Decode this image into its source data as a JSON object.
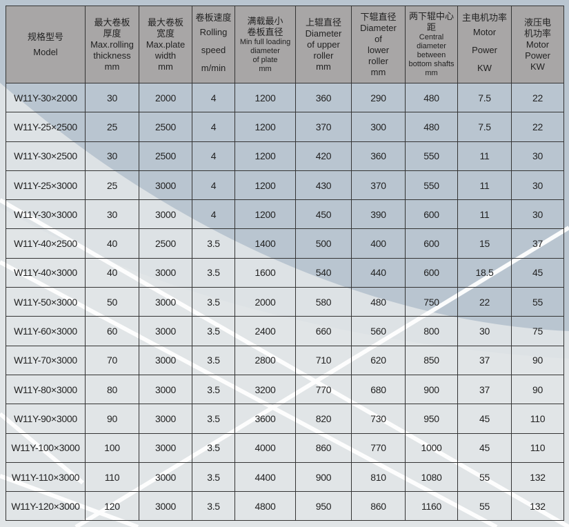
{
  "table": {
    "headers": [
      {
        "lines": [
          "规格型号",
          "Model"
        ]
      },
      {
        "lines": [
          "最大卷板",
          "厚度",
          "Max.rolling",
          "thickness",
          "mm"
        ]
      },
      {
        "lines": [
          "最大卷板",
          "宽度",
          "Max.plate",
          "width",
          "mm"
        ]
      },
      {
        "lines": [
          "卷板速度",
          "Rolling",
          "speed",
          "m/min"
        ]
      },
      {
        "lines": [
          "满载最小",
          "卷板直径",
          "Min full loading",
          "diameter",
          "of plate",
          "mm"
        ]
      },
      {
        "lines": [
          "上辊直径",
          "Diameter",
          "of upper",
          "roller",
          "mm"
        ]
      },
      {
        "lines": [
          "下辊直径",
          "Diameter",
          "of",
          "lower",
          "roller",
          "mm"
        ]
      },
      {
        "lines": [
          "两下辊中心距",
          "Central",
          "diameter",
          "between",
          "bottom shafts",
          "mm"
        ]
      },
      {
        "lines": [
          "主电机功率",
          "Motor",
          "Power",
          "KW"
        ]
      },
      {
        "lines": [
          "液压电",
          "机功率",
          "Motor",
          "Power",
          "KW"
        ]
      }
    ],
    "rows": [
      [
        "W11Y-30×2000",
        "30",
        "2000",
        "4",
        "1200",
        "360",
        "290",
        "480",
        "7.5",
        "22"
      ],
      [
        "W11Y-25×2500",
        "25",
        "2500",
        "4",
        "1200",
        "370",
        "300",
        "480",
        "7.5",
        "22"
      ],
      [
        "W11Y-30×2500",
        "30",
        "2500",
        "4",
        "1200",
        "420",
        "360",
        "550",
        "11",
        "30"
      ],
      [
        "W11Y-25×3000",
        "25",
        "3000",
        "4",
        "1200",
        "430",
        "370",
        "550",
        "11",
        "30"
      ],
      [
        "W11Y-30×3000",
        "30",
        "3000",
        "4",
        "1200",
        "450",
        "390",
        "600",
        "11",
        "30"
      ],
      [
        "W11Y-40×2500",
        "40",
        "2500",
        "3.5",
        "1400",
        "500",
        "400",
        "600",
        "15",
        "37"
      ],
      [
        "W11Y-40×3000",
        "40",
        "3000",
        "3.5",
        "1600",
        "540",
        "440",
        "600",
        "18.5",
        "45"
      ],
      [
        "W11Y-50×3000",
        "50",
        "3000",
        "3.5",
        "2000",
        "580",
        "480",
        "750",
        "22",
        "55"
      ],
      [
        "W11Y-60×3000",
        "60",
        "3000",
        "3.5",
        "2400",
        "660",
        "560",
        "800",
        "30",
        "75"
      ],
      [
        "W11Y-70×3000",
        "70",
        "3000",
        "3.5",
        "2800",
        "710",
        "620",
        "850",
        "37",
        "90"
      ],
      [
        "W11Y-80×3000",
        "80",
        "3000",
        "3.5",
        "3200",
        "770",
        "680",
        "900",
        "37",
        "90"
      ],
      [
        "W11Y-90×3000",
        "90",
        "3000",
        "3.5",
        "3600",
        "820",
        "730",
        "950",
        "45",
        "110"
      ],
      [
        "W11Y-100×3000",
        "100",
        "3000",
        "3.5",
        "4000",
        "860",
        "770",
        "1000",
        "45",
        "110"
      ],
      [
        "W11Y-110×3000",
        "110",
        "3000",
        "3.5",
        "4400",
        "900",
        "810",
        "1080",
        "55",
        "132"
      ],
      [
        "W11Y-120×3000",
        "120",
        "3000",
        "3.5",
        "4800",
        "950",
        "860",
        "1160",
        "55",
        "132"
      ]
    ]
  },
  "colors": {
    "header_bg": "#a8a6a6",
    "page_bg": "#dde2e5",
    "accent_shape": "#b9c5d0"
  }
}
